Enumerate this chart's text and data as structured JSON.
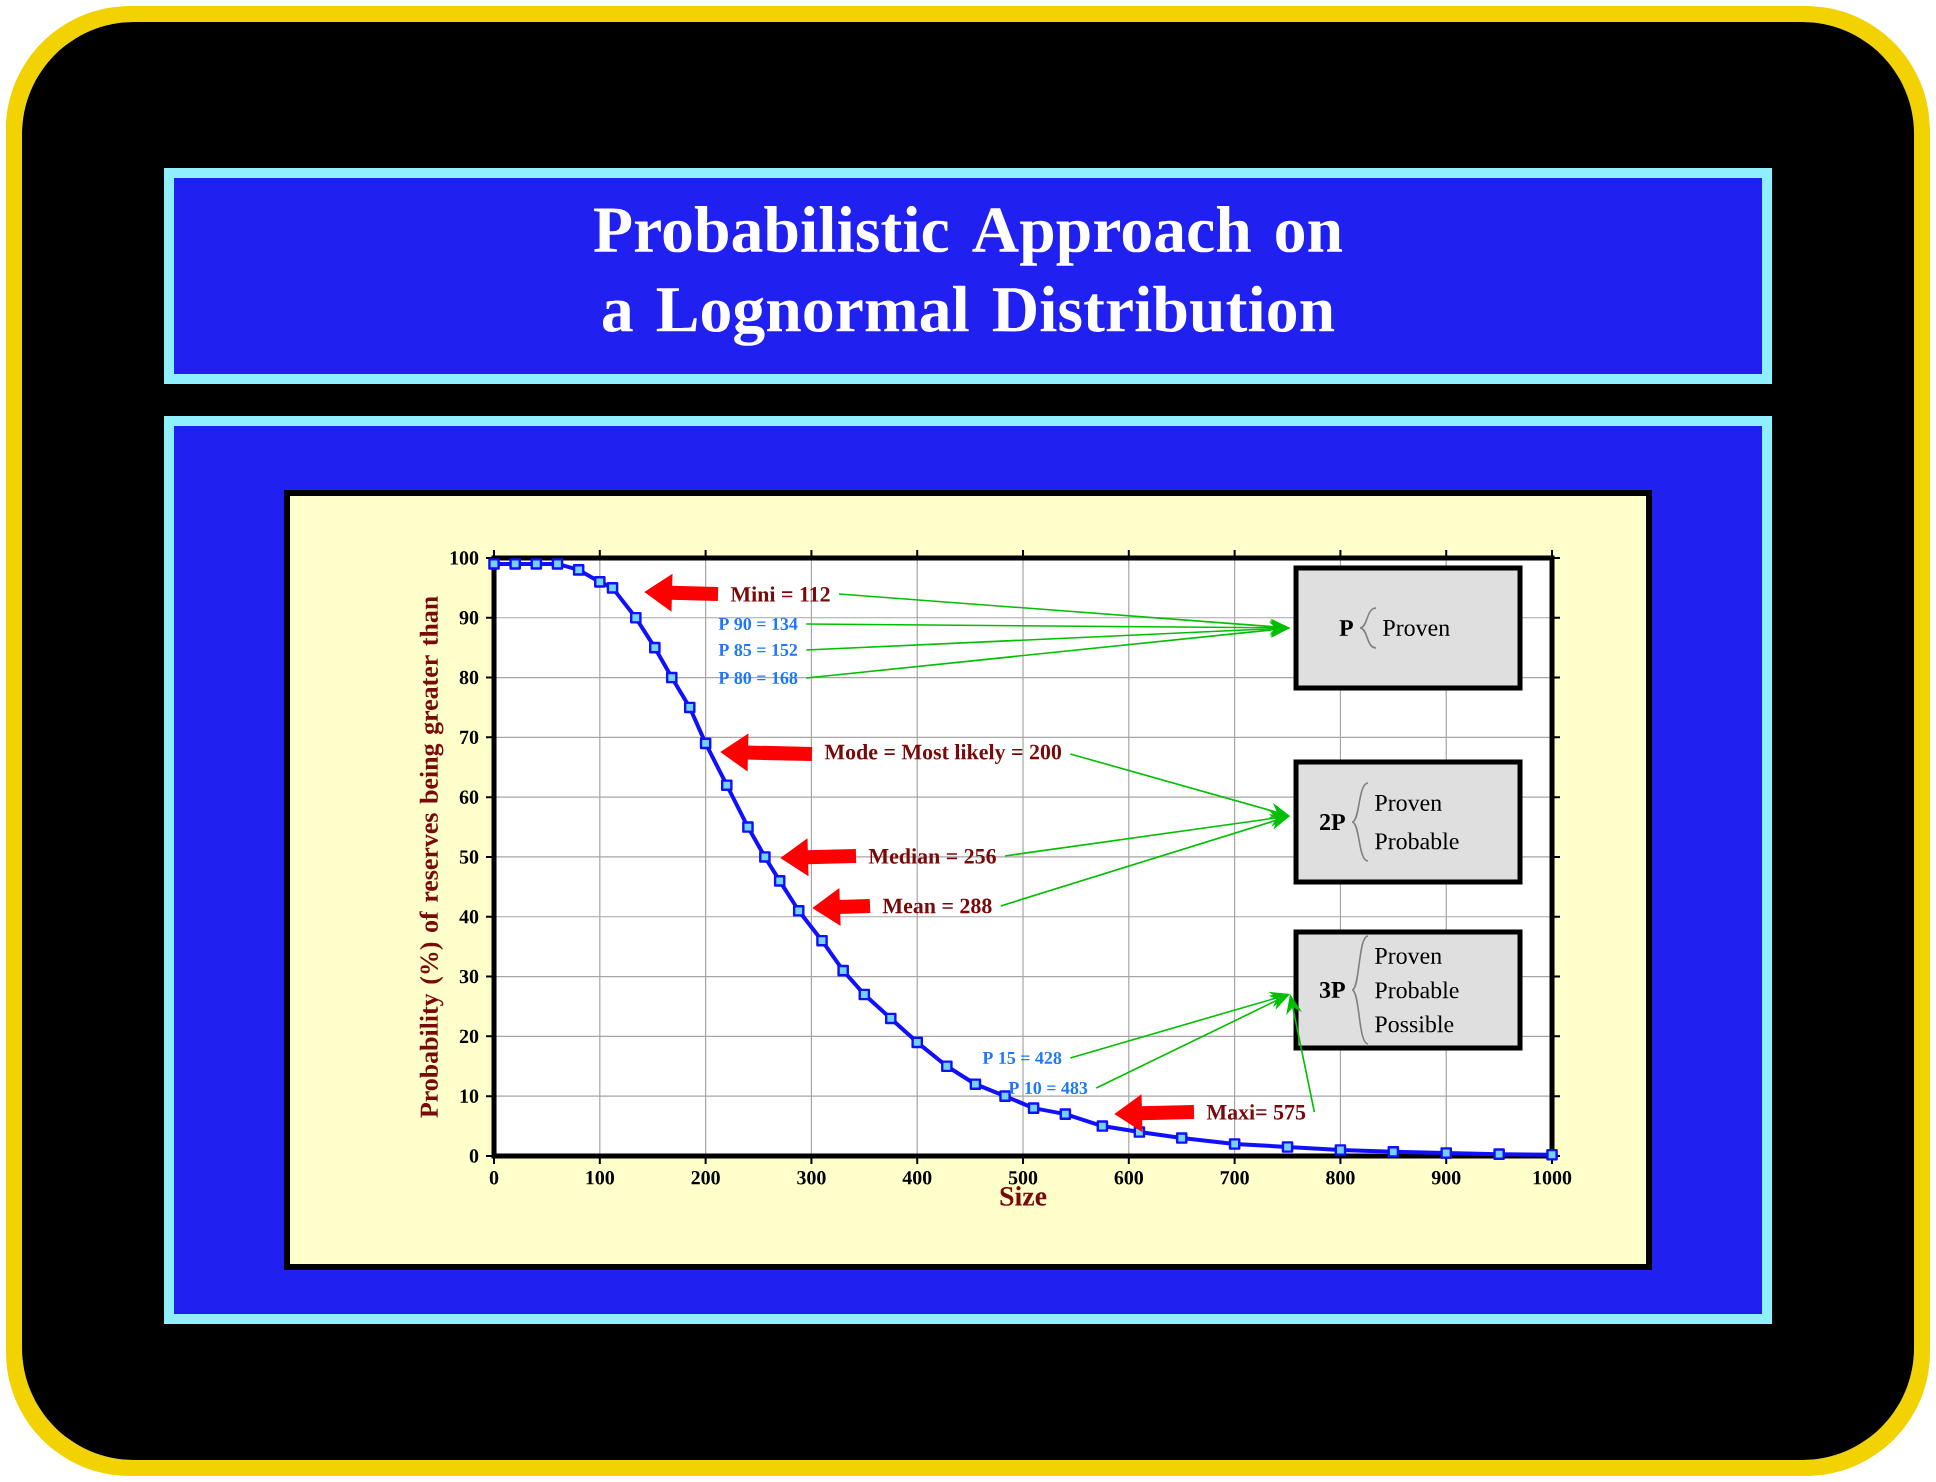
{
  "chart_data": {
    "type": "line",
    "title": "Probabilistic Approach on a Lognormal Distribution",
    "xlabel": "Size",
    "ylabel": "Probability (%) of reserves being greater than",
    "series": [
      {
        "color": "#1010ff",
        "x": [
          0,
          20,
          40,
          60,
          80,
          100,
          112,
          134,
          152,
          168,
          185,
          200,
          220,
          240,
          256,
          270,
          288,
          310,
          330,
          350,
          375,
          400,
          428,
          455,
          483,
          510,
          540,
          575,
          610,
          650,
          700,
          750,
          800,
          850,
          900,
          950,
          1000
        ],
        "values": [
          99,
          99,
          99,
          99,
          98,
          96,
          95,
          90,
          85,
          80,
          75,
          69,
          62,
          55,
          50,
          46,
          41,
          36,
          31,
          27,
          23,
          19,
          15,
          12,
          10,
          8,
          7,
          5,
          4,
          3,
          2,
          1.5,
          1,
          0.7,
          0.5,
          0.3,
          0.2
        ]
      }
    ],
    "xlim": [
      0,
      1000
    ],
    "ylim": [
      0,
      100
    ],
    "xticks": [
      0,
      100,
      200,
      300,
      400,
      500,
      600,
      700,
      800,
      900,
      1000
    ],
    "yticks": [
      0,
      10,
      20,
      30,
      40,
      50,
      60,
      70,
      80,
      90,
      100
    ],
    "grid": true,
    "marker": "square",
    "line_style": "solid",
    "annotations": [
      "Mini = 112",
      "P 90 = 134",
      "P 85 = 152",
      "P 80 = 168",
      "Mode = Most likely = 200",
      "Median = 256",
      "Mean = 288",
      "P 15 = 428",
      "P 10 = 483",
      "Maxi= 575",
      "P",
      "Proven",
      "2P",
      "Proven",
      "Probable",
      "3P",
      "Proven",
      "Probable",
      "Possible"
    ]
  }
}
